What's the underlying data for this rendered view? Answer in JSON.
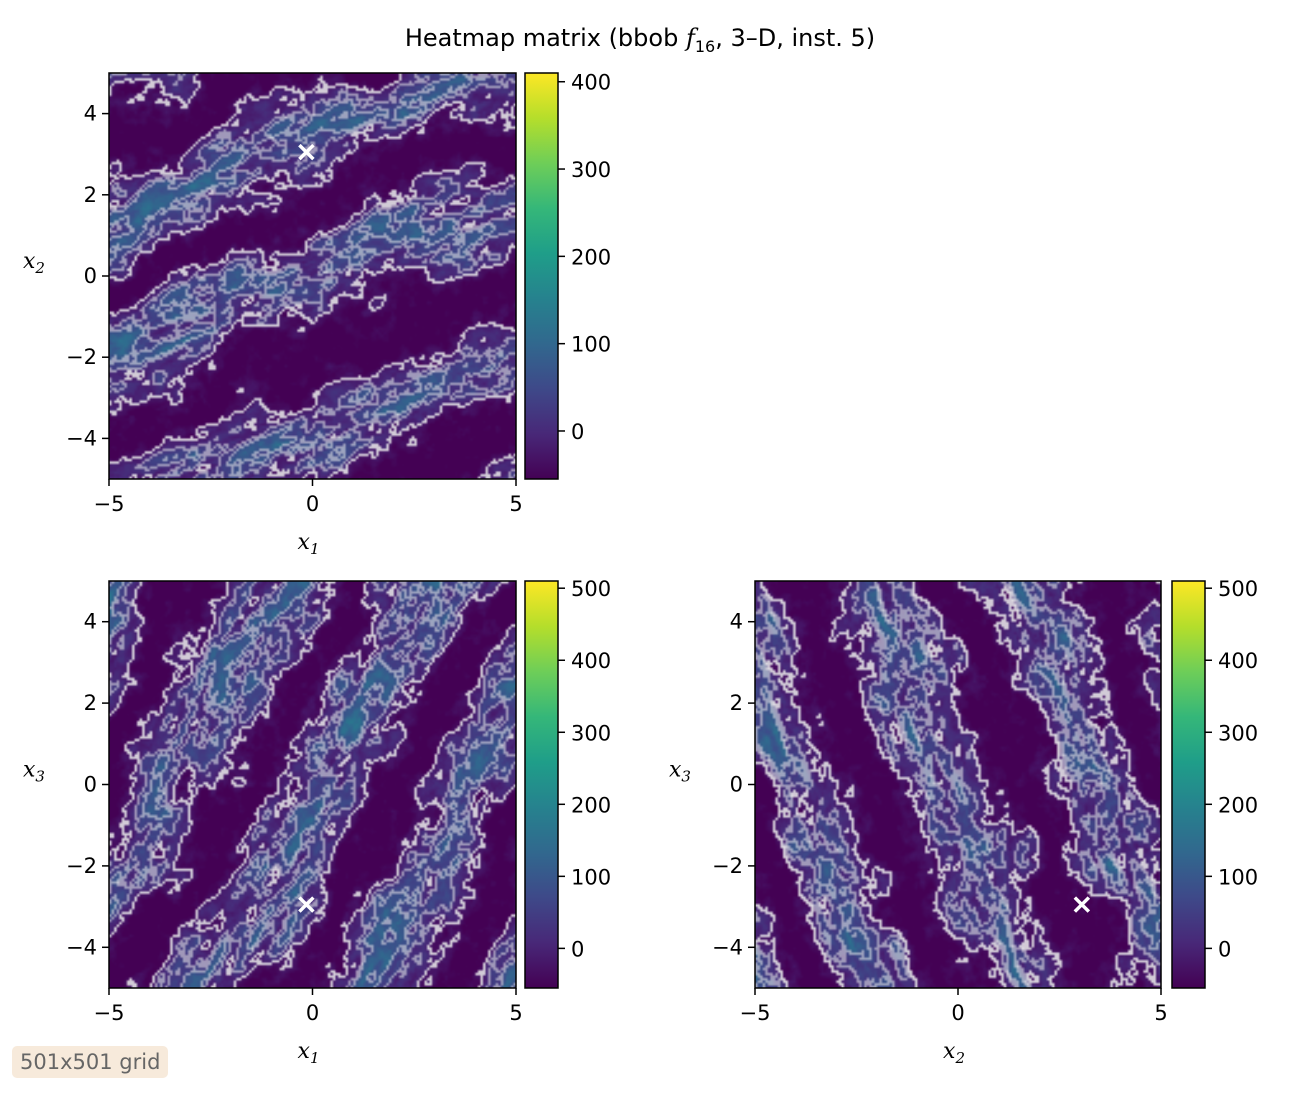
{
  "title_prefix": "Heatmap matrix (bbob ",
  "title_f": "f",
  "title_f_sub": "16",
  "title_suffix": ", 3–D, inst. 5)",
  "grid_note": "501x501 grid",
  "colors": {
    "viridis": [
      "#440154",
      "#482878",
      "#3e4989",
      "#31688e",
      "#26828e",
      "#1f9e89",
      "#35b779",
      "#6ece58",
      "#b5de2b",
      "#fde725"
    ],
    "contour": "#ffffff",
    "marker": "#ffffff"
  },
  "chart_data": [
    {
      "type": "heatmap",
      "id": "x1-x2",
      "xlabel": "x",
      "xlabel_sub": "1",
      "ylabel": "x",
      "ylabel_sub": "2",
      "xlim": [
        -5,
        5
      ],
      "ylim": [
        -5,
        5
      ],
      "xticks": [
        -5,
        0,
        5
      ],
      "yticks": [
        -4,
        -2,
        0,
        2,
        4
      ],
      "xtick_labels": [
        "−5",
        "0",
        "5"
      ],
      "ytick_labels": [
        "−4",
        "−2",
        "0",
        "2",
        "4"
      ],
      "colorbar_range": [
        -55,
        410
      ],
      "colorbar_ticks": [
        0,
        100,
        200,
        300,
        400
      ],
      "optimum": {
        "x": -0.15,
        "y": 3.05
      },
      "band_slope": 0.4
    },
    {
      "type": "heatmap",
      "id": "x1-x3",
      "xlabel": "x",
      "xlabel_sub": "1",
      "ylabel": "x",
      "ylabel_sub": "3",
      "xlim": [
        -5,
        5
      ],
      "ylim": [
        -5,
        5
      ],
      "xticks": [
        -5,
        0,
        5
      ],
      "yticks": [
        -4,
        -2,
        0,
        2,
        4
      ],
      "xtick_labels": [
        "−5",
        "0",
        "5"
      ],
      "ytick_labels": [
        "−4",
        "−2",
        "0",
        "2",
        "4"
      ],
      "colorbar_range": [
        -55,
        510
      ],
      "colorbar_ticks": [
        0,
        100,
        200,
        300,
        400,
        500
      ],
      "optimum": {
        "x": -0.15,
        "y": -2.95
      },
      "band_slope": 1.8
    },
    {
      "type": "heatmap",
      "id": "x2-x3",
      "xlabel": "x",
      "xlabel_sub": "2",
      "ylabel": "x",
      "ylabel_sub": "3",
      "xlim": [
        -5,
        5
      ],
      "ylim": [
        -5,
        5
      ],
      "xticks": [
        -5,
        0,
        5
      ],
      "yticks": [
        -4,
        -2,
        0,
        2,
        4
      ],
      "xtick_labels": [
        "−5",
        "0",
        "5"
      ],
      "ytick_labels": [
        "−4",
        "−2",
        "0",
        "2",
        "4"
      ],
      "colorbar_range": [
        -55,
        510
      ],
      "colorbar_ticks": [
        0,
        100,
        200,
        300,
        400,
        500
      ],
      "optimum": {
        "x": 3.05,
        "y": -2.95
      },
      "band_slope": -2.6
    }
  ]
}
